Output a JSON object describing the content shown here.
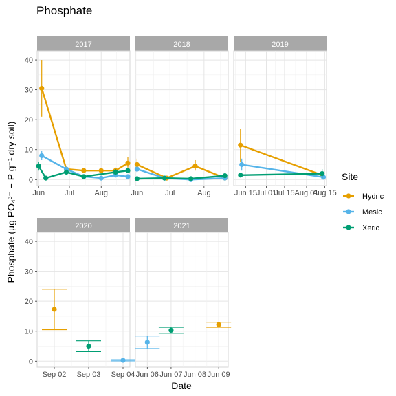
{
  "chart_data": {
    "type": "line",
    "title": "Phosphate",
    "xlabel": "Date",
    "ylabel": "Phosphate (μg PO₄³⁻ − P g⁻¹ dry soil)",
    "ylim": [
      -2,
      43
    ],
    "yticks": [
      0,
      10,
      20,
      30,
      40
    ],
    "grid": true,
    "legend": {
      "title": "Site",
      "position": "right",
      "entries": [
        {
          "name": "Hydric",
          "color": "#E69F00"
        },
        {
          "name": "Mesic",
          "color": "#56B4E9"
        },
        {
          "name": "Xeric",
          "color": "#009E73"
        }
      ]
    },
    "panels": [
      {
        "label": "2017",
        "xticks": [
          "Jun",
          "Jul",
          "Aug"
        ],
        "connected": true,
        "series": [
          {
            "name": "Hydric",
            "points": [
              {
                "x": "Jun 04",
                "y": 30.5,
                "lo": 21,
                "hi": 40
              },
              {
                "x": "Jun 28",
                "y": 3.5,
                "lo": 3,
                "hi": 4
              },
              {
                "x": "Jul 15",
                "y": 3,
                "lo": 2.5,
                "hi": 3.5
              },
              {
                "x": "Aug 01",
                "y": 3,
                "lo": 2.5,
                "hi": 3.5
              },
              {
                "x": "Aug 15",
                "y": 3,
                "lo": 2,
                "hi": 4
              },
              {
                "x": "Aug 27",
                "y": 5.5,
                "lo": 4,
                "hi": 7.5
              }
            ]
          },
          {
            "name": "Mesic",
            "points": [
              {
                "x": "Jun 04",
                "y": 8,
                "lo": 6.5,
                "hi": 9.5
              },
              {
                "x": "Jun 28",
                "y": 3.5,
                "lo": 3,
                "hi": 4
              },
              {
                "x": "Jul 15",
                "y": 1,
                "lo": 0.5,
                "hi": 1.5
              },
              {
                "x": "Aug 01",
                "y": 0.5,
                "lo": 0,
                "hi": 1
              },
              {
                "x": "Aug 15",
                "y": 1.5,
                "lo": 1,
                "hi": 2
              },
              {
                "x": "Aug 27",
                "y": 1,
                "lo": 0.5,
                "hi": 1.5
              }
            ]
          },
          {
            "name": "Xeric",
            "points": [
              {
                "x": "Jun 01",
                "y": 4.5,
                "lo": 3,
                "hi": 6
              },
              {
                "x": "Jun 08",
                "y": 0.5,
                "lo": 0,
                "hi": 1
              },
              {
                "x": "Jun 28",
                "y": 2.5,
                "lo": 2,
                "hi": 3
              },
              {
                "x": "Jul 15",
                "y": 1,
                "lo": 0.5,
                "hi": 1.5
              },
              {
                "x": "Aug 15",
                "y": 2.5,
                "lo": 1.5,
                "hi": 3.5
              },
              {
                "x": "Aug 27",
                "y": 3,
                "lo": 2.5,
                "hi": 3.5
              }
            ]
          }
        ]
      },
      {
        "label": "2018",
        "xticks": [
          "Jun",
          "Jul",
          "Aug"
        ],
        "connected": true,
        "series": [
          {
            "name": "Hydric",
            "points": [
              {
                "x": "Jun 01",
                "y": 5,
                "lo": 3.5,
                "hi": 7
              },
              {
                "x": "Jun 28",
                "y": 0.5,
                "lo": 0,
                "hi": 1
              },
              {
                "x": "Jul 24",
                "y": 4.5,
                "lo": 3,
                "hi": 6.5
              },
              {
                "x": "Aug 20",
                "y": 0.5,
                "lo": 0,
                "hi": 1
              }
            ]
          },
          {
            "name": "Mesic",
            "points": [
              {
                "x": "Jun 01",
                "y": 3.5,
                "lo": 2.5,
                "hi": 4.5
              },
              {
                "x": "Jun 26",
                "y": 0.5,
                "lo": 0,
                "hi": 1
              },
              {
                "x": "Jul 20",
                "y": 0,
                "lo": -0.5,
                "hi": 0.5
              },
              {
                "x": "Aug 20",
                "y": 0.5,
                "lo": 0,
                "hi": 1
              }
            ]
          },
          {
            "name": "Xeric",
            "points": [
              {
                "x": "Jun 01",
                "y": 0.3,
                "lo": 0,
                "hi": 0.6
              },
              {
                "x": "Jun 26",
                "y": 0.5,
                "lo": 0,
                "hi": 1
              },
              {
                "x": "Jul 20",
                "y": 0.3,
                "lo": 0,
                "hi": 0.6
              },
              {
                "x": "Aug 20",
                "y": 1.3,
                "lo": 0.8,
                "hi": 1.8
              }
            ]
          }
        ]
      },
      {
        "label": "2019",
        "xticks": [
          "Jun 15",
          "Jul 01",
          "Jul 15",
          "Aug 01",
          "Aug 15"
        ],
        "connected": true,
        "series": [
          {
            "name": "Hydric",
            "points": [
              {
                "x": "Jun 11",
                "y": 11.5,
                "lo": 6,
                "hi": 17
              },
              {
                "x": "Aug 13",
                "y": 1.5,
                "lo": 0.5,
                "hi": 2.5
              }
            ]
          },
          {
            "name": "Mesic",
            "points": [
              {
                "x": "Jun 12",
                "y": 5,
                "lo": 3,
                "hi": 7
              },
              {
                "x": "Aug 14",
                "y": 0.8,
                "lo": 0.3,
                "hi": 1.3
              }
            ]
          },
          {
            "name": "Xeric",
            "points": [
              {
                "x": "Jun 11",
                "y": 1.5,
                "lo": 1,
                "hi": 2
              },
              {
                "x": "Aug 13",
                "y": 2,
                "lo": 0.5,
                "hi": 3.5
              }
            ]
          }
        ]
      },
      {
        "label": "2020",
        "xticks": [
          "Sep 02",
          "Sep 03",
          "Sep 04"
        ],
        "connected": false,
        "series": [
          {
            "name": "Hydric",
            "points": [
              {
                "x": "Sep 02",
                "y": 17.3,
                "lo": 10.5,
                "hi": 24
              }
            ]
          },
          {
            "name": "Mesic",
            "points": [
              {
                "x": "Sep 04",
                "y": 0.3,
                "lo": 0.1,
                "hi": 0.5
              }
            ]
          },
          {
            "name": "Xeric",
            "points": [
              {
                "x": "Sep 03",
                "y": 5,
                "lo": 3.2,
                "hi": 6.8
              }
            ]
          }
        ]
      },
      {
        "label": "2021",
        "xticks": [
          "Jun 06",
          "Jun 07",
          "Jun 08",
          "Jun 09"
        ],
        "connected": false,
        "series": [
          {
            "name": "Hydric",
            "points": [
              {
                "x": "Jun 09",
                "y": 12.2,
                "lo": 11.3,
                "hi": 13
              }
            ]
          },
          {
            "name": "Mesic",
            "points": [
              {
                "x": "Jun 06",
                "y": 6.3,
                "lo": 4.2,
                "hi": 8.4
              }
            ]
          },
          {
            "name": "Xeric",
            "points": [
              {
                "x": "Jun 07",
                "y": 10.3,
                "lo": 9.3,
                "hi": 11.3
              }
            ]
          }
        ]
      }
    ]
  }
}
